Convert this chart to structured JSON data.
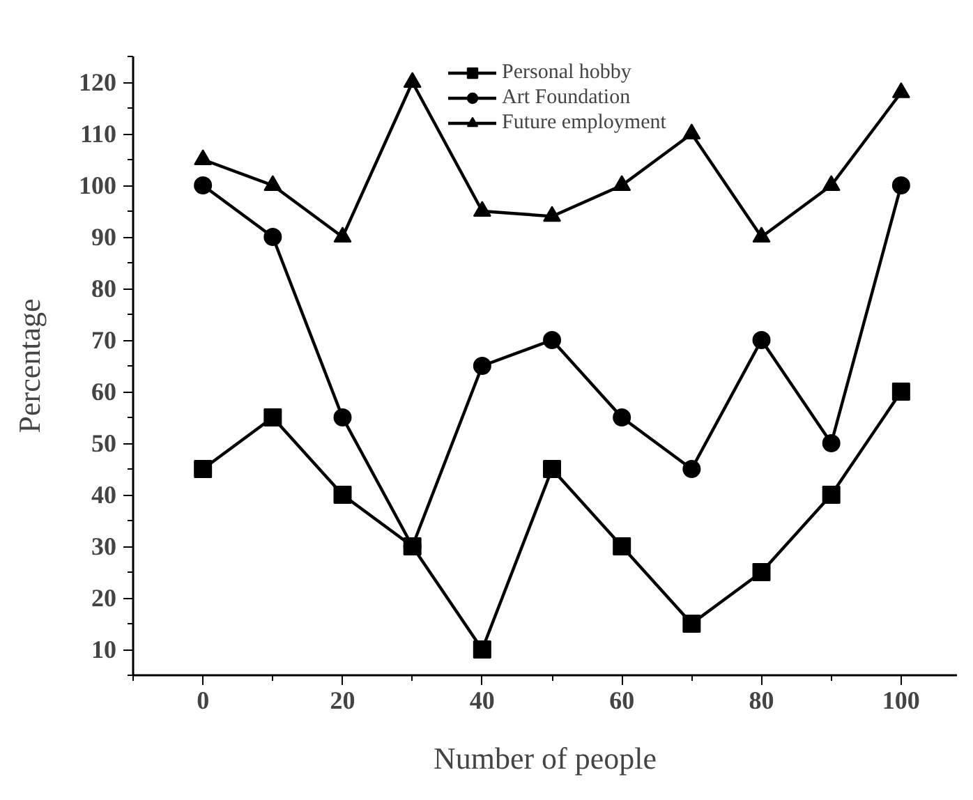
{
  "chart_data": {
    "type": "line",
    "xlabel": "Number of people",
    "ylabel": "Percentage",
    "x": [
      0,
      10,
      20,
      30,
      40,
      50,
      60,
      70,
      80,
      90,
      100
    ],
    "xlim": [
      -10,
      108
    ],
    "xticks": [
      0,
      20,
      40,
      60,
      80,
      100
    ],
    "ylim": [
      5,
      125
    ],
    "yticks": [
      10,
      20,
      30,
      40,
      50,
      60,
      70,
      80,
      90,
      100,
      110,
      120
    ],
    "grid": false,
    "legend": "top",
    "line_style": "solid",
    "series": [
      {
        "name": "Personal hobby",
        "color": "#000000",
        "marker": "square",
        "values": [
          45,
          55,
          40,
          30,
          10,
          45,
          30,
          15,
          25,
          40,
          60
        ]
      },
      {
        "name": "Art Foundation",
        "color": "#000000",
        "marker": "circle",
        "values": [
          100,
          90,
          55,
          30,
          65,
          70,
          55,
          45,
          70,
          50,
          100
        ]
      },
      {
        "name": "Future employment",
        "color": "#000000",
        "marker": "triangle",
        "values": [
          105,
          100,
          90,
          120,
          95,
          94,
          100,
          110,
          90,
          100,
          118
        ]
      }
    ]
  }
}
